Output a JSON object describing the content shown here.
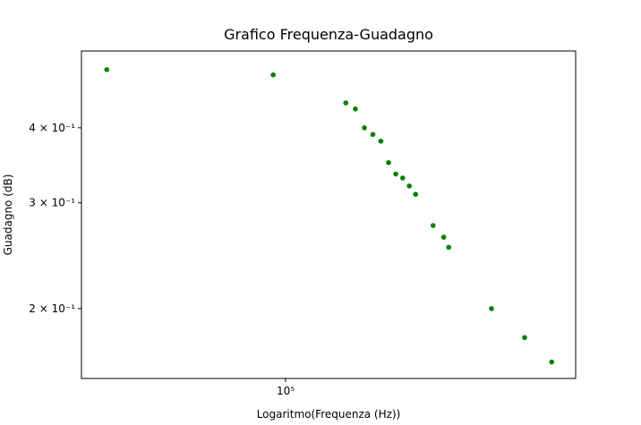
{
  "chart_data": {
    "type": "scatter",
    "title": "Grafico Frequenza-Guadagno",
    "x_label": "Logaritmo(Frequenza (Hz))",
    "y_label": "Guadagno (dB)",
    "x_scale": "log",
    "y_scale": "log",
    "series": [
      {
        "color": "#008000",
        "x": [
          30000,
          92000,
          150000,
          160000,
          170000,
          180000,
          190000,
          200000,
          210000,
          220000,
          230000,
          240000,
          270000,
          290000,
          300000,
          400000,
          500000,
          600000
        ],
        "values": [
          0.5,
          0.49,
          0.44,
          0.43,
          0.4,
          0.39,
          0.38,
          0.35,
          0.335,
          0.33,
          0.32,
          0.31,
          0.275,
          0.263,
          0.253,
          0.2,
          0.179,
          0.163
        ]
      }
    ],
    "xlim": [
      25300,
      705000
    ],
    "ylim": [
      0.153,
      0.537
    ],
    "xticks": [
      {
        "value": 100000,
        "label": "10⁵"
      }
    ],
    "yticks": [
      {
        "value": 0.2,
        "label": "2 × 10⁻¹"
      },
      {
        "value": 0.3,
        "label": "3 × 10⁻¹"
      },
      {
        "value": 0.4,
        "label": "4 × 10⁻¹"
      }
    ]
  }
}
